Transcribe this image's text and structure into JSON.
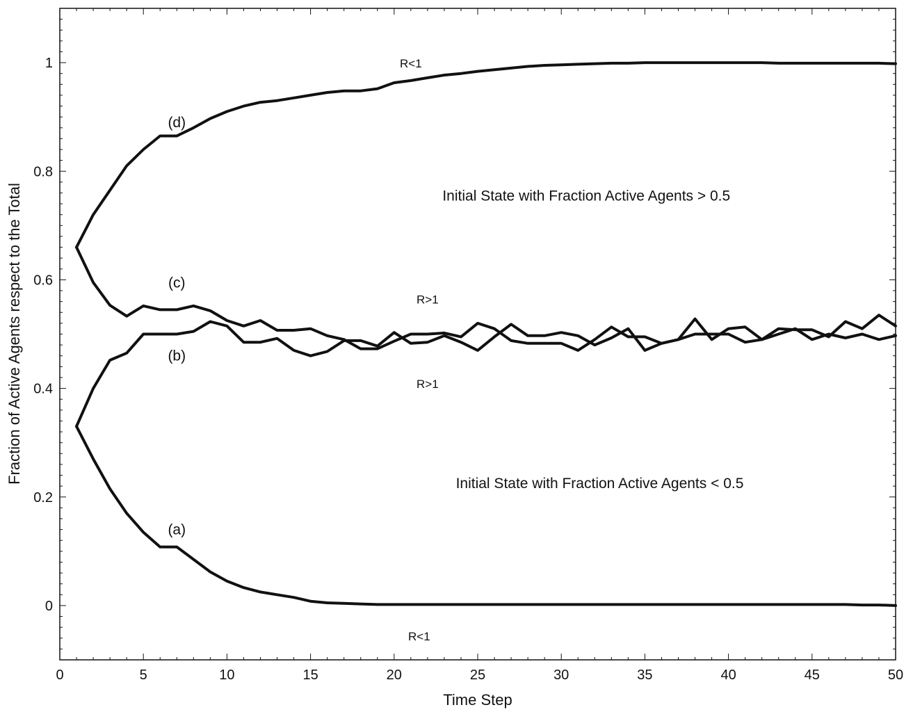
{
  "chart_data": {
    "type": "line",
    "title": "",
    "xlabel": "Time Step",
    "ylabel": "Fraction of Active Agents respect to the Total",
    "xlim": [
      0,
      50
    ],
    "ylim": [
      -0.1,
      1.1
    ],
    "xticks": [
      0,
      5,
      10,
      15,
      20,
      25,
      30,
      35,
      40,
      45,
      50
    ],
    "yticks": [
      0,
      0.2,
      0.4,
      0.6,
      0.8,
      1
    ],
    "xtick_labels": [
      "0",
      "5",
      "10",
      "15",
      "20",
      "25",
      "30",
      "35",
      "40",
      "45",
      "50"
    ],
    "ytick_labels": [
      "0",
      "0.2",
      "0.4",
      "0.6",
      "0.8",
      "1"
    ],
    "grid": false,
    "series_color": "#111111",
    "x": [
      1,
      2,
      3,
      4,
      5,
      6,
      7,
      8,
      9,
      10,
      11,
      12,
      13,
      14,
      15,
      16,
      17,
      18,
      19,
      20,
      21,
      22,
      23,
      24,
      25,
      26,
      27,
      28,
      29,
      30,
      31,
      32,
      33,
      34,
      35,
      36,
      37,
      38,
      39,
      40,
      41,
      42,
      43,
      44,
      45,
      46,
      47,
      48,
      49,
      50
    ],
    "series": [
      {
        "id": "a",
        "values": [
          0.33,
          0.27,
          0.215,
          0.17,
          0.135,
          0.108,
          0.108,
          0.085,
          0.062,
          0.045,
          0.033,
          0.025,
          0.02,
          0.015,
          0.008,
          0.005,
          0.004,
          0.003,
          0.002,
          0.002,
          0.002,
          0.002,
          0.002,
          0.002,
          0.002,
          0.002,
          0.002,
          0.002,
          0.002,
          0.002,
          0.002,
          0.002,
          0.002,
          0.002,
          0.002,
          0.002,
          0.002,
          0.002,
          0.002,
          0.002,
          0.002,
          0.002,
          0.002,
          0.002,
          0.002,
          0.002,
          0.002,
          0.001,
          0.001,
          0.0
        ]
      },
      {
        "id": "b",
        "values": [
          0.33,
          0.4,
          0.452,
          0.465,
          0.5,
          0.5,
          0.5,
          0.505,
          0.523,
          0.515,
          0.485,
          0.485,
          0.492,
          0.47,
          0.46,
          0.468,
          0.488,
          0.488,
          0.478,
          0.503,
          0.483,
          0.485,
          0.497,
          0.485,
          0.47,
          0.495,
          0.518,
          0.497,
          0.497,
          0.503,
          0.497,
          0.48,
          0.493,
          0.51,
          0.47,
          0.483,
          0.49,
          0.528,
          0.49,
          0.51,
          0.513,
          0.49,
          0.51,
          0.508,
          0.508,
          0.495,
          0.523,
          0.51,
          0.535,
          0.515
        ]
      },
      {
        "id": "c",
        "values": [
          0.66,
          0.595,
          0.553,
          0.533,
          0.552,
          0.545,
          0.545,
          0.552,
          0.543,
          0.525,
          0.515,
          0.525,
          0.507,
          0.507,
          0.51,
          0.497,
          0.49,
          0.473,
          0.473,
          0.487,
          0.5,
          0.5,
          0.502,
          0.495,
          0.52,
          0.51,
          0.488,
          0.483,
          0.483,
          0.483,
          0.47,
          0.49,
          0.513,
          0.495,
          0.495,
          0.483,
          0.49,
          0.5,
          0.5,
          0.5,
          0.485,
          0.49,
          0.5,
          0.51,
          0.49,
          0.5,
          0.493,
          0.5,
          0.49,
          0.497
        ]
      },
      {
        "id": "d",
        "values": [
          0.66,
          0.72,
          0.765,
          0.81,
          0.84,
          0.865,
          0.865,
          0.88,
          0.897,
          0.91,
          0.92,
          0.927,
          0.93,
          0.935,
          0.94,
          0.945,
          0.948,
          0.948,
          0.952,
          0.963,
          0.967,
          0.972,
          0.977,
          0.98,
          0.984,
          0.987,
          0.99,
          0.993,
          0.995,
          0.996,
          0.997,
          0.998,
          0.999,
          0.999,
          1.0,
          1.0,
          1.0,
          1.0,
          1.0,
          1.0,
          1.0,
          1.0,
          0.999,
          0.999,
          0.999,
          0.999,
          0.999,
          0.999,
          0.999,
          0.998
        ]
      }
    ],
    "annotations": [
      {
        "id": "label-a",
        "text": "(a)",
        "x": 7.0,
        "y": 0.14,
        "size": "normal"
      },
      {
        "id": "label-b",
        "text": "(b)",
        "x": 7.0,
        "y": 0.46,
        "size": "normal"
      },
      {
        "id": "label-c",
        "text": "(c)",
        "x": 7.0,
        "y": 0.595,
        "size": "normal"
      },
      {
        "id": "label-d",
        "text": "(d)",
        "x": 7.0,
        "y": 0.89,
        "size": "normal"
      },
      {
        "id": "label-r-less-top",
        "text": "R<1",
        "x": 21.0,
        "y": 1.0,
        "size": "small"
      },
      {
        "id": "label-r-greater-top",
        "text": "R>1",
        "x": 22.0,
        "y": 0.565,
        "size": "small"
      },
      {
        "id": "label-r-greater-bottom",
        "text": "R>1",
        "x": 22.0,
        "y": 0.41,
        "size": "small"
      },
      {
        "id": "label-r-less-bottom",
        "text": "R<1",
        "x": 21.5,
        "y": -0.055,
        "size": "small"
      },
      {
        "id": "label-state-high",
        "text": "Initial State with Fraction Active Agents > 0.5",
        "x": 31.5,
        "y": 0.755,
        "size": "normal"
      },
      {
        "id": "label-state-low",
        "text": "Initial State with Fraction Active Agents < 0.5",
        "x": 32.3,
        "y": 0.225,
        "size": "normal"
      }
    ]
  }
}
